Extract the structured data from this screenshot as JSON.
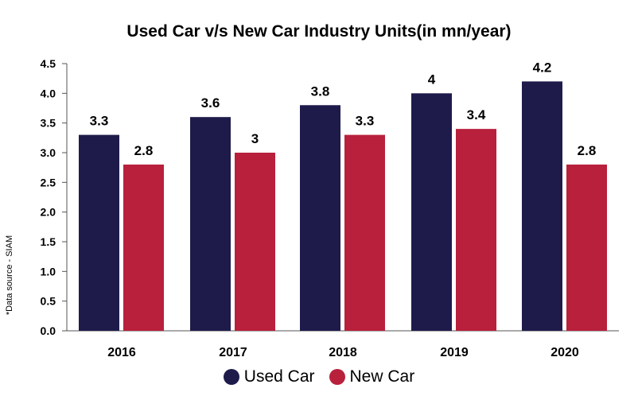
{
  "title": "Used Car v/s New Car Industry Units(in mn/year)",
  "source_note": "*Data source - SIAM",
  "colors": {
    "used": "#1e1b4b",
    "new": "#b8203c"
  },
  "chart_data": {
    "type": "bar",
    "title": "Used Car v/s New Car Industry Units(in mn/year)",
    "categories": [
      "2016",
      "2017",
      "2018",
      "2019",
      "2020"
    ],
    "series": [
      {
        "name": "Used Car",
        "values": [
          3.3,
          3.6,
          3.8,
          4,
          4.2
        ],
        "labels": [
          "3.3",
          "3.6",
          "3.8",
          "4",
          "4.2"
        ]
      },
      {
        "name": "New Car",
        "values": [
          2.8,
          3,
          3.3,
          3.4,
          2.8
        ],
        "labels": [
          "2.8",
          "3",
          "3.3",
          "3.4",
          "2.8"
        ]
      }
    ],
    "yticks": [
      "0.0",
      "0.5",
      "1.0",
      "1.5",
      "2.0",
      "2.5",
      "3.0",
      "3.5",
      "4.0",
      "4.5"
    ],
    "ylim": [
      0,
      4.5
    ],
    "grid": false,
    "legend": "bottom-center"
  }
}
